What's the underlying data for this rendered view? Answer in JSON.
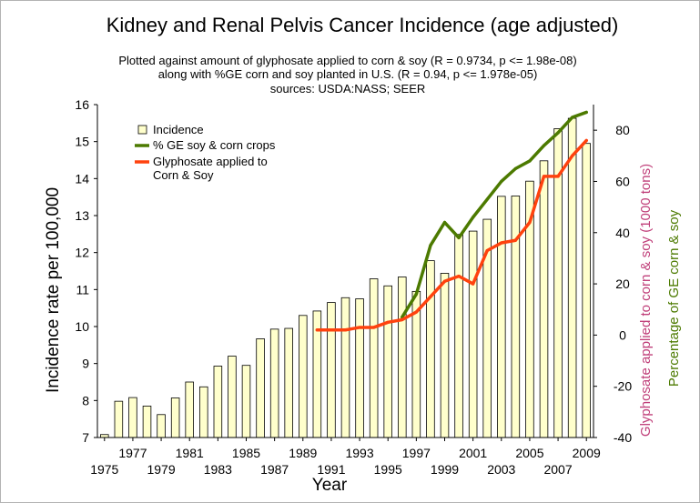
{
  "chart_data": {
    "type": "bar",
    "title": "Kidney and Renal Pelvis Cancer Incidence (age adjusted)",
    "subtitle_lines": [
      "Plotted against amount of glyphosate applied to corn & soy (R = 0.9734, p <= 1.98e-08)",
      "along with %GE corn and soy planted in U.S. (R = 0.94, p <= 1.978e-05)",
      "sources: USDA:NASS; SEER"
    ],
    "xlabel": "Year",
    "ylabel": "Incidence rate per 100,000",
    "ylabel_right_1": "Glyphosate applied to corn & soy (1000 tons)",
    "ylabel_right_2": "Percentage of GE corn & soy",
    "ylim": [
      7,
      16
    ],
    "ylim_right": [
      -40,
      90
    ],
    "yticks": [
      "7",
      "8",
      "9",
      "10",
      "11",
      "12",
      "13",
      "14",
      "15",
      "16"
    ],
    "yticks_right": [
      "-40",
      "-20",
      "0",
      "20",
      "40",
      "60",
      "80"
    ],
    "xticks_upper": [
      "1977",
      "1981",
      "1985",
      "1989",
      "1993",
      "1997",
      "2001",
      "2005",
      "2009"
    ],
    "xticks_lower": [
      "1975",
      "1979",
      "1983",
      "1987",
      "1991",
      "1995",
      "1999",
      "2003",
      "2007"
    ],
    "x_range": [
      1975,
      2009
    ],
    "series": [
      {
        "name": "Incidence",
        "kind": "bar",
        "axis": "left",
        "color": "#ffffcc",
        "x": [
          1975,
          1976,
          1977,
          1978,
          1979,
          1980,
          1981,
          1982,
          1983,
          1984,
          1985,
          1986,
          1987,
          1988,
          1989,
          1990,
          1991,
          1992,
          1993,
          1994,
          1995,
          1996,
          1997,
          1998,
          1999,
          2000,
          2001,
          2002,
          2003,
          2004,
          2005,
          2006,
          2007,
          2008,
          2009
        ],
        "values": [
          7.08,
          7.98,
          8.08,
          7.85,
          7.62,
          8.07,
          8.5,
          8.37,
          8.93,
          9.2,
          8.95,
          9.67,
          9.93,
          9.95,
          10.3,
          10.42,
          10.65,
          10.78,
          10.75,
          11.29,
          11.1,
          11.34,
          10.95,
          11.78,
          11.44,
          12.49,
          12.58,
          12.9,
          13.52,
          13.53,
          13.93,
          14.48,
          15.35,
          15.63,
          14.95
        ]
      },
      {
        "name": "% GE soy & corn crops",
        "kind": "line",
        "axis": "right",
        "color": "#4c7a00",
        "x": [
          1996,
          1997,
          1998,
          1999,
          2000,
          2001,
          2002,
          2003,
          2004,
          2005,
          2006,
          2007,
          2008,
          2009
        ],
        "values": [
          7,
          16,
          35,
          44,
          38,
          46,
          53,
          60,
          65,
          68,
          74,
          79,
          85,
          87
        ]
      },
      {
        "name": "Glyphosate applied to Corn & Soy",
        "kind": "line",
        "axis": "right",
        "color": "#ff420e",
        "x": [
          1990,
          1991,
          1992,
          1993,
          1994,
          1995,
          1996,
          1997,
          1998,
          1999,
          2000,
          2001,
          2002,
          2003,
          2004,
          2005,
          2006,
          2007,
          2008,
          2009
        ],
        "values": [
          2,
          2,
          2,
          3,
          3,
          5,
          6,
          9,
          15,
          21,
          23,
          20,
          33,
          36,
          37,
          44,
          62,
          62,
          70,
          76
        ]
      }
    ],
    "legend": {
      "placement": "top-left",
      "items": [
        {
          "lines": [
            "Incidence"
          ],
          "swatch": "box",
          "color": "#ffffcc"
        },
        {
          "lines": [
            "% GE soy & corn crops"
          ],
          "swatch": "line",
          "color": "#4c7a00"
        },
        {
          "lines": [
            "Glyphosate applied to",
            "Corn & Soy"
          ],
          "swatch": "line",
          "color": "#ff420e"
        }
      ]
    },
    "right_label_colors": [
      "#c0407a",
      "#4c7a00"
    ]
  }
}
